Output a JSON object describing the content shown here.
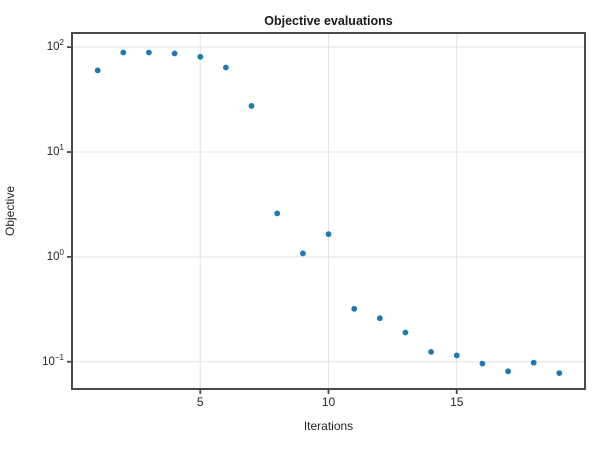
{
  "chart_data": {
    "type": "scatter",
    "title": "Objective evaluations",
    "xlabel": "Iterations",
    "ylabel": "Objective",
    "x": [
      1,
      2,
      3,
      4,
      5,
      6,
      7,
      8,
      9,
      10,
      11,
      12,
      13,
      14,
      15,
      16,
      17,
      18,
      19
    ],
    "y": [
      60,
      89,
      89,
      87,
      81,
      64,
      27.5,
      2.6,
      1.08,
      1.65,
      0.32,
      0.26,
      0.19,
      0.124,
      0.115,
      0.096,
      0.081,
      0.098,
      0.078
    ],
    "yscale": "log",
    "xlim": [
      0,
      20
    ],
    "ylog_lim": [
      -1.26,
      2.135
    ],
    "xticks": [
      5,
      10,
      15
    ],
    "ytick_exponents": [
      2,
      1,
      0,
      -1
    ],
    "grid": true,
    "legend": "none",
    "marker_color": "#1f77b4",
    "grid_color": "#e4e4e4",
    "spine_color": "#4a4a4a",
    "tick_color": "#4a4a4a",
    "text_color": "#262626"
  }
}
